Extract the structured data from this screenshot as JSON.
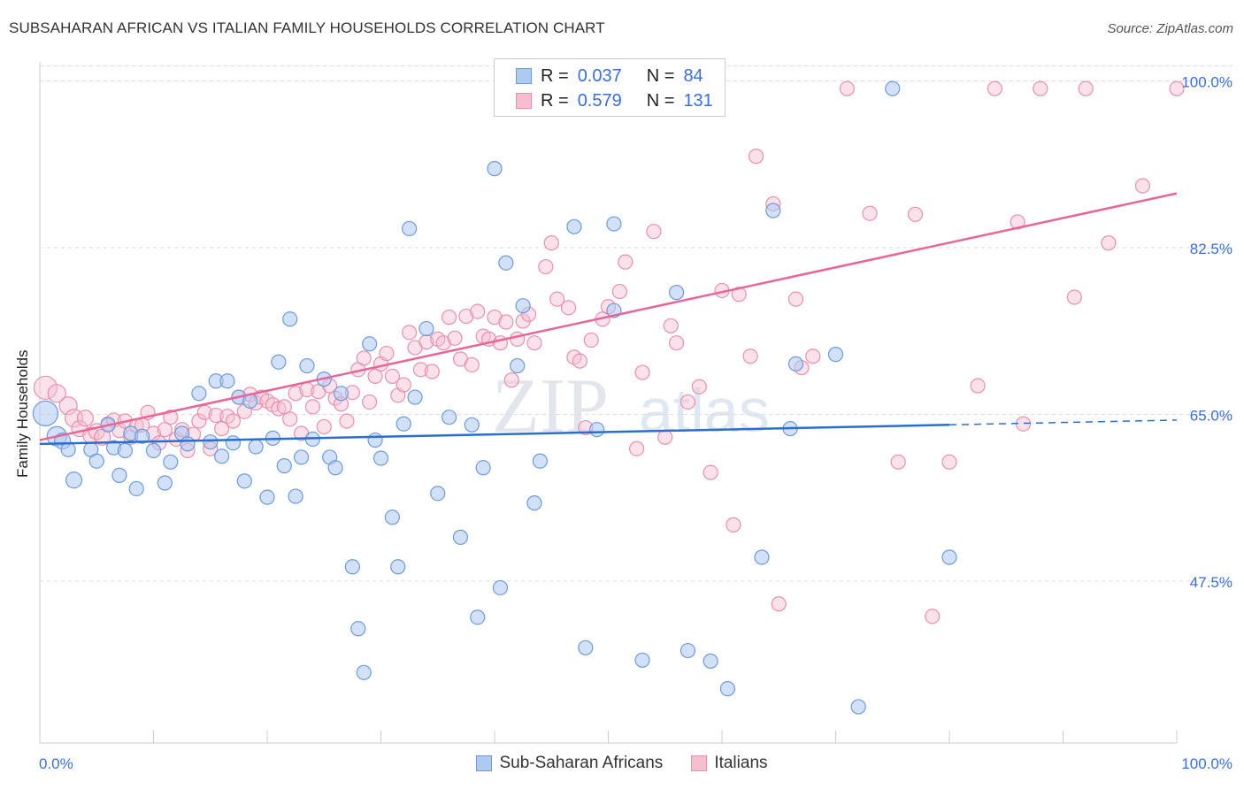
{
  "title": "SUBSAHARAN AFRICAN VS ITALIAN FAMILY HOUSEHOLDS CORRELATION CHART",
  "source": "Source: ZipAtlas.com",
  "watermark": {
    "zip": "ZIP",
    "atlas": "atlas"
  },
  "legend": {
    "r_label": "R =",
    "n_label": "N =",
    "series": [
      {
        "r": "0.037",
        "n": "84"
      },
      {
        "r": "0.579",
        "n": "131"
      }
    ]
  },
  "chart_data": {
    "type": "scatter",
    "title": "SUBSAHARAN AFRICAN VS ITALIAN FAMILY HOUSEHOLDS CORRELATION CHART",
    "ylabel": "Family Households",
    "xlabel": "",
    "xlim": [
      0,
      100
    ],
    "ylim": [
      30.5,
      102
    ],
    "x_tick_labels": [
      "0.0%",
      "100.0%"
    ],
    "y_ticks": [
      47.5,
      65.0,
      82.5,
      100.0
    ],
    "y_tick_labels": [
      "47.5%",
      "65.0%",
      "82.5%",
      "100.0%"
    ],
    "grid": "horizontal dashed",
    "legend_placement": "top-center",
    "colors": {
      "blue_fill": "#aec9f2",
      "blue_edge": "#6e9bd8",
      "blue_line": "#2a6fcf",
      "pink_fill": "#f7bed0",
      "pink_edge": "#e890ad",
      "pink_line": "#e8659a",
      "tick_label": "#3a6ed8"
    },
    "series": [
      {
        "name": "Sub-Saharan Africans",
        "color": "#aec9f2",
        "trend": {
          "x0": 0,
          "y0": 61.9,
          "x1": 80,
          "y1": 63.9,
          "dash_to": 100,
          "dash_y": 64.4
        },
        "points": [
          [
            0.5,
            65.1,
            14
          ],
          [
            1.5,
            62.7,
            11
          ],
          [
            2,
            62.2,
            9
          ],
          [
            2.5,
            61.3,
            8
          ],
          [
            3,
            58.1,
            9
          ],
          [
            4.5,
            61.3,
            8
          ],
          [
            5,
            60.1,
            8
          ],
          [
            6,
            63.9,
            8
          ],
          [
            6.5,
            61.5,
            8
          ],
          [
            7,
            58.6,
            8
          ],
          [
            7.5,
            61.2,
            8
          ],
          [
            8,
            63.0,
            8
          ],
          [
            8.5,
            57.2,
            8
          ],
          [
            9,
            62.7,
            8
          ],
          [
            10,
            61.2,
            8
          ],
          [
            11,
            57.8,
            8
          ],
          [
            11.5,
            60.0,
            8
          ],
          [
            12.5,
            63.0,
            8
          ],
          [
            13,
            61.9,
            8
          ],
          [
            14,
            67.2,
            8
          ],
          [
            15,
            62.1,
            8
          ],
          [
            15.5,
            68.5,
            8
          ],
          [
            16,
            60.6,
            8
          ],
          [
            16.5,
            68.5,
            8
          ],
          [
            17,
            62.0,
            8
          ],
          [
            17.5,
            66.8,
            8
          ],
          [
            18,
            58.0,
            8
          ],
          [
            18.5,
            66.4,
            8
          ],
          [
            19,
            61.6,
            8
          ],
          [
            20,
            56.3,
            8
          ],
          [
            20.5,
            62.5,
            8
          ],
          [
            21,
            70.5,
            8
          ],
          [
            21.5,
            59.6,
            8
          ],
          [
            22,
            75.0,
            8
          ],
          [
            22.5,
            56.4,
            8
          ],
          [
            23,
            60.5,
            8
          ],
          [
            23.5,
            70.1,
            8
          ],
          [
            24,
            62.4,
            8
          ],
          [
            25,
            68.7,
            8
          ],
          [
            25.5,
            60.5,
            8
          ],
          [
            26,
            59.4,
            8
          ],
          [
            26.5,
            67.2,
            8
          ],
          [
            27.5,
            49.0,
            8
          ],
          [
            28,
            42.5,
            8
          ],
          [
            28.5,
            37.9,
            8
          ],
          [
            29,
            72.4,
            8
          ],
          [
            29.5,
            62.3,
            8
          ],
          [
            30,
            60.4,
            8
          ],
          [
            31,
            54.2,
            8
          ],
          [
            31.5,
            49.0,
            8
          ],
          [
            32,
            64.0,
            8
          ],
          [
            32.5,
            84.5,
            8
          ],
          [
            33,
            66.8,
            8
          ],
          [
            34,
            74.0,
            8
          ],
          [
            35,
            56.7,
            8
          ],
          [
            36,
            64.7,
            8
          ],
          [
            37,
            52.1,
            8
          ],
          [
            38,
            63.9,
            8
          ],
          [
            38.5,
            43.7,
            8
          ],
          [
            39,
            59.4,
            8
          ],
          [
            40,
            90.8,
            8
          ],
          [
            40.5,
            46.8,
            8
          ],
          [
            41,
            80.9,
            8
          ],
          [
            42,
            70.1,
            8
          ],
          [
            42.5,
            76.4,
            8
          ],
          [
            43.5,
            55.7,
            8
          ],
          [
            44,
            60.1,
            8
          ],
          [
            47,
            84.7,
            8
          ],
          [
            48,
            40.5,
            8
          ],
          [
            49,
            63.4,
            8
          ],
          [
            50.5,
            75.9,
            8
          ],
          [
            50.5,
            85.0,
            8
          ],
          [
            53,
            39.2,
            8
          ],
          [
            56,
            77.8,
            8
          ],
          [
            57,
            40.2,
            8
          ],
          [
            59,
            39.1,
            8
          ],
          [
            60.5,
            36.2,
            8
          ],
          [
            63.5,
            50.0,
            8
          ],
          [
            64.5,
            86.4,
            8
          ],
          [
            66,
            63.5,
            8
          ],
          [
            66.5,
            70.3,
            8
          ],
          [
            70,
            71.3,
            8
          ],
          [
            72,
            34.3,
            8
          ],
          [
            75,
            99.2,
            8
          ],
          [
            80,
            50.0,
            8
          ]
        ]
      },
      {
        "name": "Italians",
        "color": "#f7bed0",
        "trend": {
          "x0": 0,
          "y0": 62.3,
          "x1": 100,
          "y1": 88.2
        },
        "points": [
          [
            0.5,
            67.8,
            13
          ],
          [
            1.5,
            67.2,
            10
          ],
          [
            2.5,
            65.9,
            10
          ],
          [
            3,
            64.6,
            10
          ],
          [
            3.5,
            63.5,
            9
          ],
          [
            4,
            64.6,
            9
          ],
          [
            4.5,
            62.8,
            9
          ],
          [
            5,
            63.2,
            9
          ],
          [
            5.5,
            62.6,
            9
          ],
          [
            6,
            64.0,
            8
          ],
          [
            6.5,
            64.4,
            8
          ],
          [
            7,
            63.3,
            8
          ],
          [
            7.5,
            64.3,
            8
          ],
          [
            8,
            62.6,
            8
          ],
          [
            8.5,
            63.8,
            8
          ],
          [
            9,
            63.9,
            8
          ],
          [
            9.5,
            65.2,
            8
          ],
          [
            10,
            63.0,
            8
          ],
          [
            10.5,
            62.0,
            8
          ],
          [
            11,
            63.4,
            8
          ],
          [
            11.5,
            64.7,
            8
          ],
          [
            12,
            62.4,
            8
          ],
          [
            12.5,
            63.4,
            8
          ],
          [
            13,
            61.2,
            8
          ],
          [
            13.5,
            62.9,
            8
          ],
          [
            14,
            64.3,
            8
          ],
          [
            14.5,
            65.2,
            8
          ],
          [
            15,
            61.4,
            8
          ],
          [
            15.5,
            64.9,
            8
          ],
          [
            16,
            63.5,
            8
          ],
          [
            16.5,
            64.8,
            8
          ],
          [
            17,
            64.3,
            8
          ],
          [
            17.5,
            66.8,
            8
          ],
          [
            18,
            65.3,
            8
          ],
          [
            18.5,
            67.1,
            8
          ],
          [
            19,
            66.2,
            8
          ],
          [
            19.5,
            66.8,
            8
          ],
          [
            20,
            66.4,
            8
          ],
          [
            20.5,
            66.0,
            8
          ],
          [
            21,
            65.6,
            8
          ],
          [
            21.5,
            65.8,
            8
          ],
          [
            22,
            64.5,
            8
          ],
          [
            22.5,
            67.2,
            8
          ],
          [
            23,
            63.0,
            8
          ],
          [
            23.5,
            67.6,
            8
          ],
          [
            24,
            65.8,
            8
          ],
          [
            24.5,
            67.4,
            8
          ],
          [
            25,
            63.7,
            8
          ],
          [
            25.5,
            68.0,
            8
          ],
          [
            26,
            66.7,
            8
          ],
          [
            26.5,
            66.1,
            8
          ],
          [
            27,
            64.3,
            8
          ],
          [
            27.5,
            67.3,
            8
          ],
          [
            28,
            69.7,
            8
          ],
          [
            28.5,
            70.9,
            8
          ],
          [
            29,
            66.3,
            8
          ],
          [
            29.5,
            69.0,
            8
          ],
          [
            30,
            70.3,
            8
          ],
          [
            30.5,
            71.4,
            8
          ],
          [
            31,
            69.0,
            8
          ],
          [
            31.5,
            67.0,
            8
          ],
          [
            32,
            68.1,
            8
          ],
          [
            32.5,
            73.6,
            8
          ],
          [
            33,
            72.0,
            8
          ],
          [
            33.5,
            69.7,
            8
          ],
          [
            34,
            72.6,
            8
          ],
          [
            34.5,
            69.5,
            8
          ],
          [
            35,
            72.9,
            8
          ],
          [
            35.5,
            72.5,
            8
          ],
          [
            36,
            75.2,
            8
          ],
          [
            36.5,
            73.0,
            8
          ],
          [
            37,
            70.8,
            8
          ],
          [
            37.5,
            75.3,
            8
          ],
          [
            38,
            70.2,
            8
          ],
          [
            38.5,
            75.8,
            8
          ],
          [
            39,
            73.2,
            8
          ],
          [
            39.5,
            72.9,
            8
          ],
          [
            40,
            75.2,
            8
          ],
          [
            40.5,
            72.5,
            8
          ],
          [
            41,
            74.7,
            8
          ],
          [
            41.5,
            68.6,
            8
          ],
          [
            42,
            72.9,
            8
          ],
          [
            42.5,
            74.8,
            8
          ],
          [
            43,
            75.5,
            8
          ],
          [
            43.5,
            72.5,
            8
          ],
          [
            44.5,
            80.5,
            8
          ],
          [
            45,
            83.0,
            8
          ],
          [
            45.5,
            77.1,
            8
          ],
          [
            46.5,
            76.2,
            8
          ],
          [
            47,
            71.0,
            8
          ],
          [
            47.5,
            70.6,
            8
          ],
          [
            48,
            63.6,
            8
          ],
          [
            48.5,
            72.8,
            8
          ],
          [
            49.5,
            75.0,
            8
          ],
          [
            50,
            76.3,
            8
          ],
          [
            51,
            77.9,
            8
          ],
          [
            51.5,
            81.0,
            8
          ],
          [
            52.5,
            61.4,
            8
          ],
          [
            53,
            69.4,
            8
          ],
          [
            54,
            84.2,
            8
          ],
          [
            55,
            62.6,
            8
          ],
          [
            55.5,
            74.3,
            8
          ],
          [
            56,
            72.5,
            8
          ],
          [
            57,
            66.3,
            8
          ],
          [
            58,
            67.9,
            8
          ],
          [
            59,
            58.9,
            8
          ],
          [
            60,
            78.0,
            8
          ],
          [
            61,
            53.4,
            8
          ],
          [
            61.5,
            77.6,
            8
          ],
          [
            62.5,
            71.1,
            8
          ],
          [
            63,
            92.1,
            8
          ],
          [
            64.5,
            87.1,
            8
          ],
          [
            65,
            45.1,
            8
          ],
          [
            66.5,
            77.1,
            8
          ],
          [
            67,
            69.9,
            8
          ],
          [
            68,
            71.1,
            8
          ],
          [
            71,
            99.2,
            8
          ],
          [
            73,
            86.1,
            8
          ],
          [
            75.5,
            60.0,
            8
          ],
          [
            77,
            86.0,
            8
          ],
          [
            78.5,
            43.8,
            8
          ],
          [
            80,
            60.0,
            8
          ],
          [
            82.5,
            68.0,
            8
          ],
          [
            84,
            99.2,
            8
          ],
          [
            86,
            85.2,
            8
          ],
          [
            86.5,
            64.0,
            8
          ],
          [
            88,
            99.2,
            8
          ],
          [
            91,
            77.3,
            8
          ],
          [
            92,
            99.2,
            8
          ],
          [
            94,
            83.0,
            8
          ],
          [
            97,
            89.0,
            8
          ],
          [
            100,
            99.2,
            8
          ]
        ]
      }
    ]
  }
}
